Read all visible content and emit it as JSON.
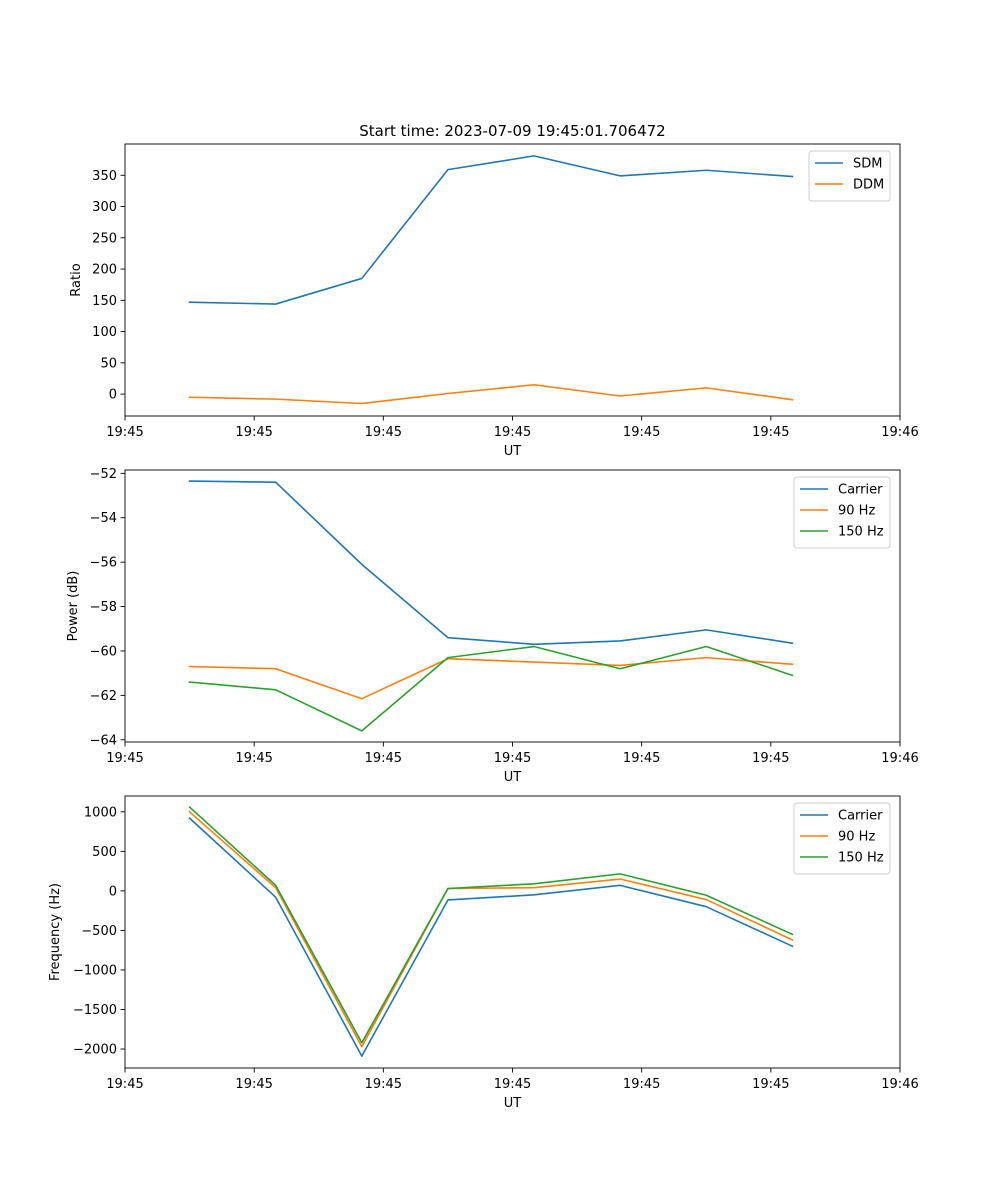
{
  "figure_title": "Start time: 2023-07-09 19:45:01.706472",
  "chart_data": [
    {
      "type": "line",
      "title": "Start time: 2023-07-09 19:45:01.706472",
      "xlabel": "UT",
      "ylabel": "Ratio",
      "x": [
        1,
        2,
        3,
        4,
        5,
        6,
        7,
        8
      ],
      "xlim": [
        0.25,
        9.25
      ],
      "xtick_positions": [
        0.25,
        1.75,
        3.25,
        4.75,
        6.25,
        7.75,
        9.25
      ],
      "xtick_labels": [
        "19:45",
        "19:45",
        "19:45",
        "19:45",
        "19:45",
        "19:45",
        "19:46"
      ],
      "ylim": [
        -35,
        400
      ],
      "yticks": [
        0,
        50,
        100,
        150,
        200,
        250,
        300,
        350
      ],
      "legend_position": "top-right",
      "series": [
        {
          "name": "SDM",
          "color": "#1f77b4",
          "values": [
            147,
            144,
            185,
            359,
            381,
            349,
            358,
            348
          ]
        },
        {
          "name": "DDM",
          "color": "#ff7f0e",
          "values": [
            -5,
            -8,
            -15,
            1,
            15,
            -3,
            10,
            -9
          ]
        }
      ]
    },
    {
      "type": "line",
      "title": "",
      "xlabel": "UT",
      "ylabel": "Power (dB)",
      "x": [
        1,
        2,
        3,
        4,
        5,
        6,
        7,
        8
      ],
      "xlim": [
        0.25,
        9.25
      ],
      "xtick_positions": [
        0.25,
        1.75,
        3.25,
        4.75,
        6.25,
        7.75,
        9.25
      ],
      "xtick_labels": [
        "19:45",
        "19:45",
        "19:45",
        "19:45",
        "19:45",
        "19:45",
        "19:46"
      ],
      "ylim": [
        -64.1,
        -51.85
      ],
      "yticks": [
        -64,
        -62,
        -60,
        -58,
        -56,
        -54,
        -52
      ],
      "legend_position": "top-right",
      "series": [
        {
          "name": "Carrier",
          "color": "#1f77b4",
          "values": [
            -52.35,
            -52.4,
            -56.1,
            -59.4,
            -59.7,
            -59.55,
            -59.05,
            -59.65
          ]
        },
        {
          "name": "90 Hz",
          "color": "#ff7f0e",
          "values": [
            -60.7,
            -60.8,
            -62.15,
            -60.35,
            -60.5,
            -60.65,
            -60.3,
            -60.6
          ]
        },
        {
          "name": "150 Hz",
          "color": "#2ca02c",
          "values": [
            -61.4,
            -61.75,
            -63.6,
            -60.3,
            -59.8,
            -60.8,
            -59.8,
            -61.1
          ]
        }
      ]
    },
    {
      "type": "line",
      "title": "",
      "xlabel": "UT",
      "ylabel": "Frequency (Hz)",
      "x": [
        1,
        2,
        3,
        4,
        5,
        6,
        7,
        8
      ],
      "xlim": [
        0.25,
        9.25
      ],
      "xtick_positions": [
        0.25,
        1.75,
        3.25,
        4.75,
        6.25,
        7.75,
        9.25
      ],
      "xtick_labels": [
        "19:45",
        "19:45",
        "19:45",
        "19:45",
        "19:45",
        "19:45",
        "19:46"
      ],
      "ylim": [
        -2240,
        1200
      ],
      "yticks": [
        -2000,
        -1500,
        -1000,
        -500,
        0,
        500,
        1000
      ],
      "legend_position": "top-right",
      "series": [
        {
          "name": "Carrier",
          "color": "#1f77b4",
          "values": [
            920,
            -80,
            -2090,
            -115,
            -50,
            70,
            -200,
            -700
          ]
        },
        {
          "name": "90 Hz",
          "color": "#ff7f0e",
          "values": [
            1000,
            40,
            -1970,
            30,
            40,
            150,
            -110,
            -620
          ]
        },
        {
          "name": "150 Hz",
          "color": "#2ca02c",
          "values": [
            1060,
            70,
            -1920,
            30,
            90,
            215,
            -55,
            -550
          ]
        }
      ]
    }
  ]
}
